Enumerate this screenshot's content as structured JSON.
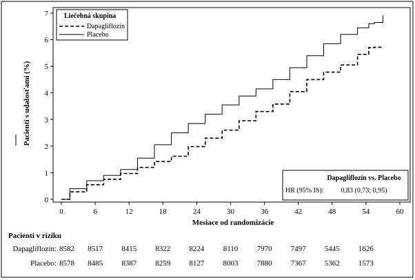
{
  "chart_data": {
    "type": "line",
    "xlabel": "Mesiace od randomizácie",
    "ylabel": "Pacienti s udalosťami (%)",
    "xlim": [
      0,
      60
    ],
    "ylim": [
      0,
      7
    ],
    "xticks": [
      0,
      6,
      12,
      18,
      24,
      30,
      36,
      42,
      48,
      54,
      60
    ],
    "yticks": [
      0,
      1,
      2,
      3,
      4,
      5,
      6,
      7
    ],
    "grid": false,
    "legend": {
      "title": "Liečebná skupina",
      "placement": "top-left",
      "entries": [
        "Dapagliflozín",
        "Placebo"
      ]
    },
    "hr_box": {
      "header": "Dapagliflozín vs. Placebo",
      "label": "HR (95% IS):",
      "value": "0,83 (0,73; 0,95)",
      "placement": "bottom-right"
    },
    "series": [
      {
        "name": "Dapagliflozín",
        "style": "dashed",
        "x": [
          0,
          3,
          6,
          9,
          12,
          15,
          18,
          21,
          24,
          27,
          30,
          33,
          36,
          39,
          42,
          45,
          48,
          51,
          54,
          55,
          56,
          57
        ],
        "y": [
          0,
          0.28,
          0.55,
          0.75,
          0.97,
          1.2,
          1.42,
          1.62,
          1.98,
          2.3,
          2.6,
          2.95,
          3.3,
          3.58,
          4.05,
          4.5,
          4.78,
          5.05,
          5.45,
          5.7,
          5.72,
          5.72
        ]
      },
      {
        "name": "Placebo",
        "style": "solid",
        "x": [
          0,
          3,
          6,
          9,
          12,
          15,
          18,
          21,
          24,
          27,
          30,
          33,
          36,
          39,
          42,
          45,
          48,
          51,
          54,
          55,
          56,
          57,
          57
        ],
        "y": [
          0,
          0.4,
          0.7,
          0.9,
          1.12,
          1.55,
          2.05,
          2.5,
          2.85,
          3.2,
          3.55,
          3.88,
          4.15,
          4.5,
          4.95,
          5.4,
          5.85,
          6.2,
          6.45,
          6.6,
          6.65,
          6.65,
          6.92
        ]
      }
    ]
  },
  "risk_table": {
    "title": "Pacienti v riziku",
    "months": [
      0,
      6,
      12,
      18,
      24,
      30,
      36,
      42,
      48,
      54
    ],
    "rows": [
      {
        "label": "Dapagliflozín:",
        "values": [
          "8582",
          "8517",
          "8415",
          "8322",
          "8224",
          "8110",
          "7970",
          "7497",
          "5445",
          "1626"
        ]
      },
      {
        "label": "Placebo:",
        "values": [
          "8578",
          "8485",
          "8387",
          "8259",
          "8127",
          "8003",
          "7880",
          "7367",
          "5362",
          "1573"
        ]
      }
    ]
  }
}
